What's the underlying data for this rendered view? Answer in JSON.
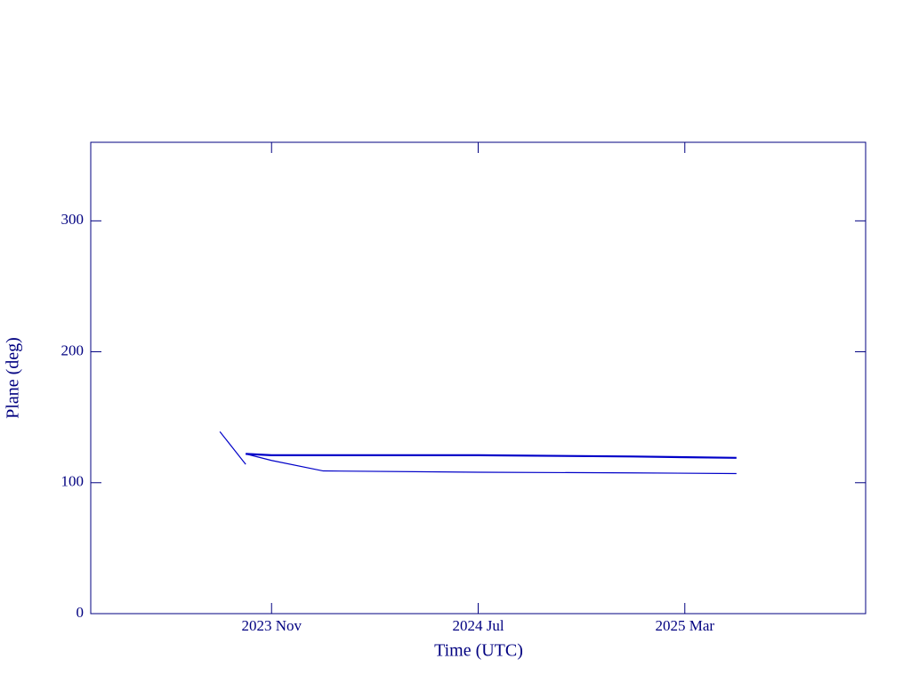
{
  "chart_data": {
    "type": "line",
    "xlabel": "Time (UTC)",
    "ylabel": "Plane (deg)",
    "x": [
      "2023-09",
      "2023-10",
      "2023-11",
      "2024-01",
      "2024-07",
      "2025-01",
      "2025-05"
    ],
    "series": [
      {
        "color": "#0000c8",
        "values": [
          139,
          114,
          null,
          null,
          null,
          null,
          null
        ]
      },
      {
        "color": "#0000c8",
        "values": [
          null,
          122,
          121,
          121,
          121,
          120,
          119
        ]
      },
      {
        "color": "#0000c8",
        "values": [
          null,
          122,
          117,
          109,
          108,
          107.5,
          107
        ]
      }
    ],
    "xlim": [
      "2023-04",
      "2025-10"
    ],
    "xticks": [
      {
        "value": "2023-11",
        "label": "2023 Nov"
      },
      {
        "value": "2024-07",
        "label": "2024 Jul"
      },
      {
        "value": "2025-03",
        "label": "2025 Mar"
      }
    ],
    "ylim": [
      0,
      360
    ],
    "yticks": [
      0,
      100,
      200,
      300
    ]
  }
}
